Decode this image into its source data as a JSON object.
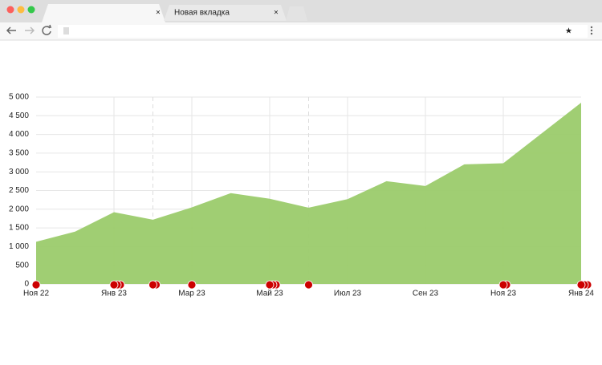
{
  "browser": {
    "tab_title": "Новая вкладка"
  },
  "chart_data": {
    "type": "area",
    "categories": [
      "Ноя 22",
      null,
      "Янв 23",
      null,
      "Мар 23",
      null,
      "Май 23",
      null,
      "Июл 23",
      null,
      "Сен 23",
      null,
      "Ноя 23",
      null,
      "Янв 24"
    ],
    "values": [
      1130,
      1400,
      1920,
      1720,
      2050,
      2430,
      2280,
      2040,
      2270,
      2750,
      2620,
      3200,
      3230,
      4040,
      4850
    ],
    "color": "#9bcb6b",
    "ylim": [
      0,
      5000
    ],
    "yticks": [
      0,
      500,
      {
        "value": 1000,
        "label": "1 000"
      },
      {
        "value": 1500,
        "label": "1 500"
      },
      {
        "value": 2000,
        "label": "2 000"
      },
      {
        "value": 2500,
        "label": "2 500"
      },
      {
        "value": 3000,
        "label": "3 000"
      },
      {
        "value": 3500,
        "label": "3 500"
      },
      {
        "value": 4000,
        "label": "4 000"
      },
      {
        "value": 4500,
        "label": "4 500"
      },
      {
        "value": 5000,
        "label": "5 000"
      }
    ],
    "grid": true
  }
}
